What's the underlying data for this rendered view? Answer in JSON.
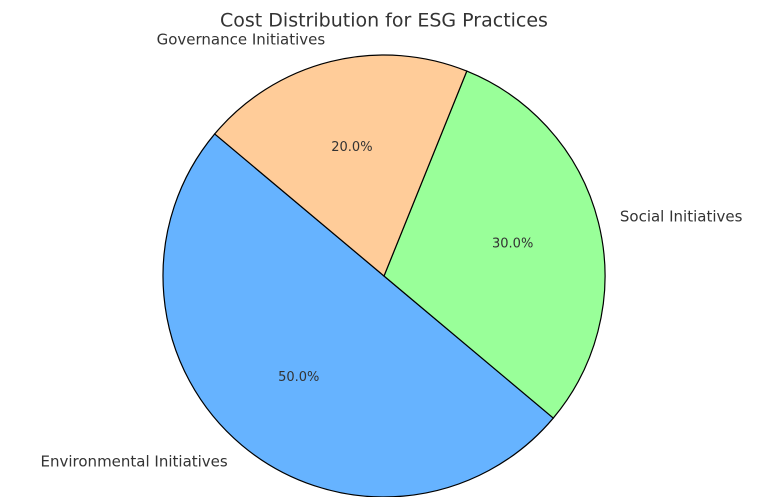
{
  "chart_data": {
    "type": "pie",
    "title": "Cost Distribution for ESG Practices",
    "categories": [
      "Environmental Initiatives",
      "Social Initiatives",
      "Governance Initiatives"
    ],
    "values": [
      50,
      30,
      20
    ],
    "value_labels": [
      "50.0%",
      "30.0%",
      "20.0%"
    ],
    "colors": [
      "#66b3ff",
      "#99ff99",
      "#ffcc99"
    ],
    "start_angle": 140
  }
}
